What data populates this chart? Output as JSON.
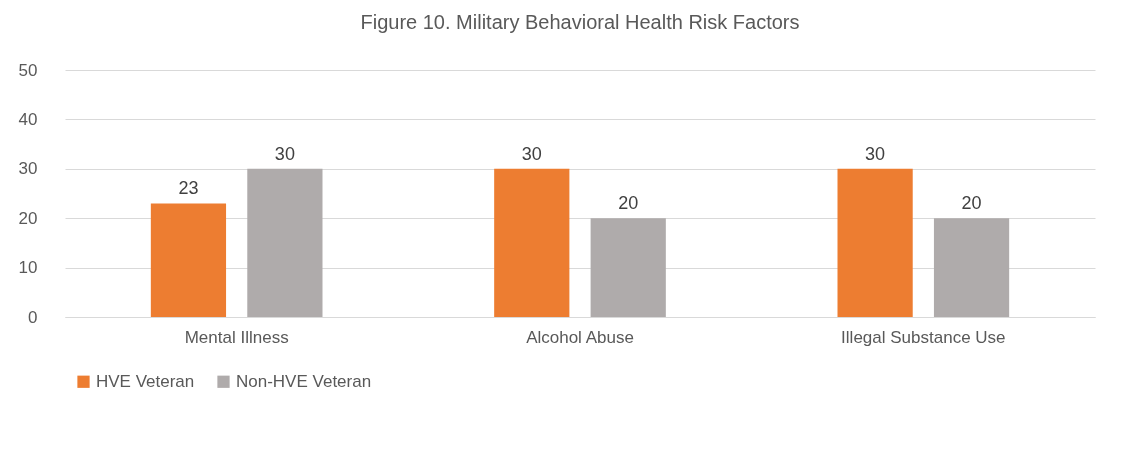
{
  "chart_data": {
    "type": "bar",
    "title": "Figure 10. Military Behavioral Health Risk Factors",
    "categories": [
      "Mental Illness",
      "Alcohol Abuse",
      "Illegal Substance Use"
    ],
    "series": [
      {
        "name": "HVE Veteran",
        "color": "#ed7d31",
        "values": [
          23,
          30,
          30
        ]
      },
      {
        "name": "Non-HVE Veteran",
        "color": "#afabab",
        "values": [
          30,
          20,
          20
        ]
      }
    ],
    "ylim": [
      0,
      50
    ],
    "yticks": [
      0,
      10,
      20,
      30,
      40,
      50
    ],
    "grid": "y",
    "legend": "bottom",
    "data_labels": true
  }
}
